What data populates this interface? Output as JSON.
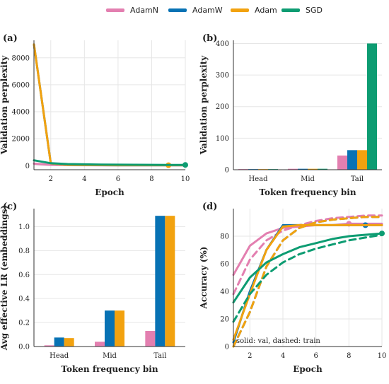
{
  "legend": [
    {
      "name": "AdamN",
      "color": "#E37FB0"
    },
    {
      "name": "AdamW",
      "color": "#0872B4"
    },
    {
      "name": "Adam",
      "color": "#F2A20F"
    },
    {
      "name": "SGD",
      "color": "#0D9C72"
    }
  ],
  "chart_data": [
    {
      "panel": "(a)",
      "type": "line",
      "xlabel": "Epoch",
      "ylabel": "Validation perplexity",
      "xlim": [
        1,
        10
      ],
      "ylim": [
        -300,
        9300
      ],
      "xticks": [
        2,
        4,
        6,
        8,
        10
      ],
      "yticks": [
        0,
        2000,
        4000,
        6000,
        8000
      ],
      "grid": true,
      "x": [
        1,
        2,
        3,
        4,
        5,
        6,
        7,
        8,
        9,
        10
      ],
      "series": [
        {
          "name": "AdamN",
          "values": [
            150,
            60,
            40,
            35,
            32,
            30,
            29,
            28,
            28,
            28
          ],
          "best_epoch": null
        },
        {
          "name": "AdamW",
          "values": [
            9000,
            170,
            60,
            45,
            40,
            38,
            36,
            35,
            34,
            34
          ],
          "best_epoch": null
        },
        {
          "name": "Adam",
          "values": [
            9000,
            170,
            60,
            45,
            40,
            38,
            36,
            35,
            34,
            34
          ],
          "best_epoch": 9
        },
        {
          "name": "SGD",
          "values": [
            400,
            180,
            120,
            100,
            85,
            75,
            68,
            62,
            58,
            55
          ],
          "best_epoch": 10
        }
      ]
    },
    {
      "panel": "(b)",
      "type": "bar",
      "xlabel": "Token frequency bin",
      "ylabel": "Validation perplexity",
      "categories": [
        "Head",
        "Mid",
        "Tail"
      ],
      "ylim": [
        0,
        410
      ],
      "yticks": [
        0,
        100,
        200,
        300,
        400
      ],
      "grid": true,
      "series": [
        {
          "name": "AdamN",
          "values": [
            2,
            3,
            45
          ]
        },
        {
          "name": "AdamW",
          "values": [
            2,
            3,
            62
          ]
        },
        {
          "name": "Adam",
          "values": [
            2,
            3,
            62
          ]
        },
        {
          "name": "SGD",
          "values": [
            2,
            3,
            400
          ]
        }
      ]
    },
    {
      "panel": "(c)",
      "type": "bar",
      "xlabel": "Token frequency bin",
      "ylabel": "Avg effective LR (embeddings)",
      "categories": [
        "Head",
        "Mid",
        "Tail"
      ],
      "ylim": [
        0,
        1.15
      ],
      "yticks": [
        0.0,
        0.2,
        0.4,
        0.6,
        0.8,
        1.0
      ],
      "ytick_labels": [
        "0.0",
        "0.2",
        "0.4",
        "0.6",
        "0.8",
        "1.0"
      ],
      "grid": true,
      "series": [
        {
          "name": "AdamN",
          "values": [
            0.01,
            0.04,
            0.13
          ]
        },
        {
          "name": "AdamW",
          "values": [
            0.075,
            0.3,
            1.09
          ]
        },
        {
          "name": "Adam",
          "values": [
            0.07,
            0.3,
            1.09
          ]
        }
      ]
    },
    {
      "panel": "(d)",
      "type": "line",
      "xlabel": "Epoch",
      "ylabel": "Accuracy (%)",
      "xlim": [
        1,
        10
      ],
      "ylim": [
        0,
        100
      ],
      "xticks": [
        2,
        4,
        6,
        8,
        10
      ],
      "yticks": [
        0,
        20,
        40,
        60,
        80
      ],
      "grid": true,
      "annotation": "solid: val, dashed: train",
      "x": [
        1,
        2,
        3,
        4,
        5,
        6,
        7,
        8,
        9,
        10
      ],
      "series": [
        {
          "name": "AdamN",
          "style": "val",
          "values": [
            52,
            73,
            82,
            86,
            87,
            88,
            88,
            89,
            89,
            89
          ],
          "best_epoch": 8
        },
        {
          "name": "AdamN",
          "style": "train",
          "values": [
            38,
            63,
            77,
            84,
            88,
            91,
            93,
            94,
            95,
            95
          ]
        },
        {
          "name": "AdamW",
          "style": "val",
          "values": [
            3,
            40,
            70,
            88,
            88,
            88,
            88,
            88,
            88,
            88
          ],
          "best_epoch": 9
        },
        {
          "name": "AdamW",
          "style": "train",
          "values": [
            0,
            25,
            58,
            77,
            86,
            90,
            92,
            93,
            94,
            94
          ]
        },
        {
          "name": "Adam",
          "style": "val",
          "values": [
            5,
            38,
            70,
            87,
            88,
            88,
            88,
            88,
            88,
            88
          ]
        },
        {
          "name": "Adam",
          "style": "train",
          "values": [
            0,
            25,
            58,
            77,
            86,
            90,
            92,
            93,
            94,
            94
          ]
        },
        {
          "name": "SGD",
          "style": "val",
          "values": [
            32,
            50,
            61,
            67,
            72,
            75,
            78,
            80,
            81,
            82
          ],
          "best_epoch": 10
        },
        {
          "name": "SGD",
          "style": "train",
          "values": [
            18,
            38,
            52,
            61,
            67,
            71,
            74,
            77,
            79,
            81
          ]
        }
      ]
    }
  ]
}
